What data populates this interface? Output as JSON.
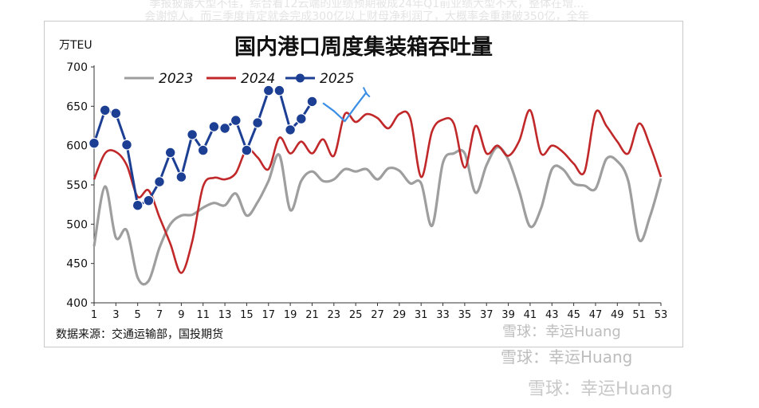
{
  "background_text": {
    "line1": "季报披露大型不佳，综合看12云端的业绩预期被成24年Q1前业绩大型不大，整体在增...",
    "line2": "会谢惊人。而三季度肯定就会完成300亿以上财母净利润了，大概率会重建破350亿，全年"
  },
  "watermarks": [
    "雪球：幸运Huang",
    "雪球：幸运Huang",
    "雪球：幸运Huang"
  ],
  "chart_data": {
    "type": "line",
    "title": "国内港口周度集装箱吞吐量",
    "unit_label": "万TEU",
    "ylim": [
      400,
      700
    ],
    "y_ticks": [
      400,
      450,
      500,
      550,
      600,
      650,
      700
    ],
    "x_ticks": [
      1,
      3,
      5,
      7,
      9,
      11,
      13,
      15,
      17,
      19,
      21,
      23,
      25,
      27,
      29,
      31,
      33,
      35,
      37,
      39,
      41,
      43,
      45,
      47,
      49,
      51,
      53
    ],
    "x_range": [
      1,
      53
    ],
    "source": "数据来源：交通运输部，国投期货",
    "legend_position": "top-left",
    "series": [
      {
        "name": "2023",
        "color": "#9e9e9e",
        "values": [
          472,
          548,
          483,
          492,
          432,
          428,
          470,
          500,
          511,
          512,
          521,
          527,
          524,
          539,
          511,
          528,
          555,
          588,
          518,
          555,
          567,
          555,
          557,
          570,
          567,
          570,
          557,
          571,
          568,
          552,
          552,
          498,
          578,
          590,
          590,
          540,
          575,
          598,
          582,
          542,
          497,
          520,
          570,
          570,
          552,
          549,
          545,
          583,
          580,
          555,
          480,
          510,
          558
        ]
      },
      {
        "name": "2024",
        "color": "#c0282a",
        "values": [
          557,
          590,
          592,
          575,
          535,
          543,
          509,
          475,
          438,
          478,
          548,
          559,
          557,
          565,
          595,
          585,
          570,
          610,
          590,
          605,
          590,
          608,
          587,
          640,
          630,
          640,
          635,
          622,
          640,
          635,
          560,
          618,
          633,
          628,
          572,
          625,
          590,
          600,
          587,
          606,
          645,
          590,
          600,
          592,
          577,
          567,
          642,
          625,
          605,
          590,
          628,
          600,
          560
        ]
      },
      {
        "name": "2025",
        "color": "#1c3f94",
        "values": [
          603,
          645,
          641,
          601,
          524,
          530,
          554,
          591,
          560,
          614,
          594,
          624,
          622,
          632,
          594,
          629,
          670,
          670,
          620,
          634,
          656
        ]
      },
      {
        "name": "2025-projection",
        "color": "#3a8ee6",
        "values": [
          null,
          null,
          null,
          null,
          null,
          null,
          null,
          null,
          null,
          null,
          null,
          null,
          null,
          null,
          null,
          null,
          null,
          null,
          null,
          null,
          null,
          654,
          644,
          631,
          650,
          668
        ]
      }
    ]
  }
}
